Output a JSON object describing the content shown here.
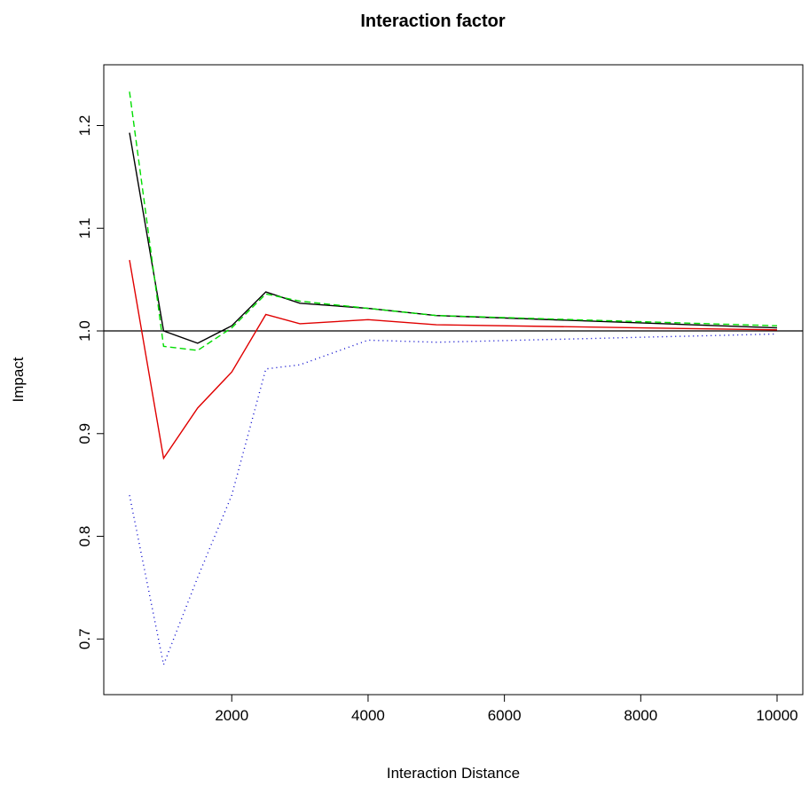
{
  "chart_data": {
    "type": "line",
    "title": "Interaction factor",
    "xlabel": "Interaction Distance",
    "ylabel": "Impact",
    "xlim": [
      500,
      10000
    ],
    "ylim": [
      0.67,
      1.235
    ],
    "xticks": [
      2000,
      4000,
      6000,
      8000,
      10000
    ],
    "yticks": [
      0.7,
      0.8,
      0.9,
      1.0,
      1.1,
      1.2
    ],
    "reference_line": {
      "y": 1.0,
      "color": "#000000"
    },
    "x": [
      500,
      1000,
      1500,
      2000,
      2500,
      3000,
      4000,
      5000,
      10000
    ],
    "series": [
      {
        "color": "#000000",
        "style": "solid",
        "values": [
          1.193,
          1.0,
          0.988,
          1.005,
          1.038,
          1.027,
          1.022,
          1.015,
          1.003
        ]
      },
      {
        "color": "#00dd00",
        "style": "dashed",
        "values": [
          1.233,
          0.985,
          0.981,
          1.003,
          1.036,
          1.029,
          1.022,
          1.015,
          1.005
        ]
      },
      {
        "color": "#e00000",
        "style": "solid",
        "values": [
          1.069,
          0.876,
          0.925,
          0.96,
          1.016,
          1.007,
          1.011,
          1.006,
          1.001
        ]
      },
      {
        "color": "#0000cc",
        "style": "dotted",
        "values": [
          0.84,
          0.675,
          0.76,
          0.84,
          0.963,
          0.967,
          0.991,
          0.989,
          0.997
        ]
      }
    ]
  }
}
